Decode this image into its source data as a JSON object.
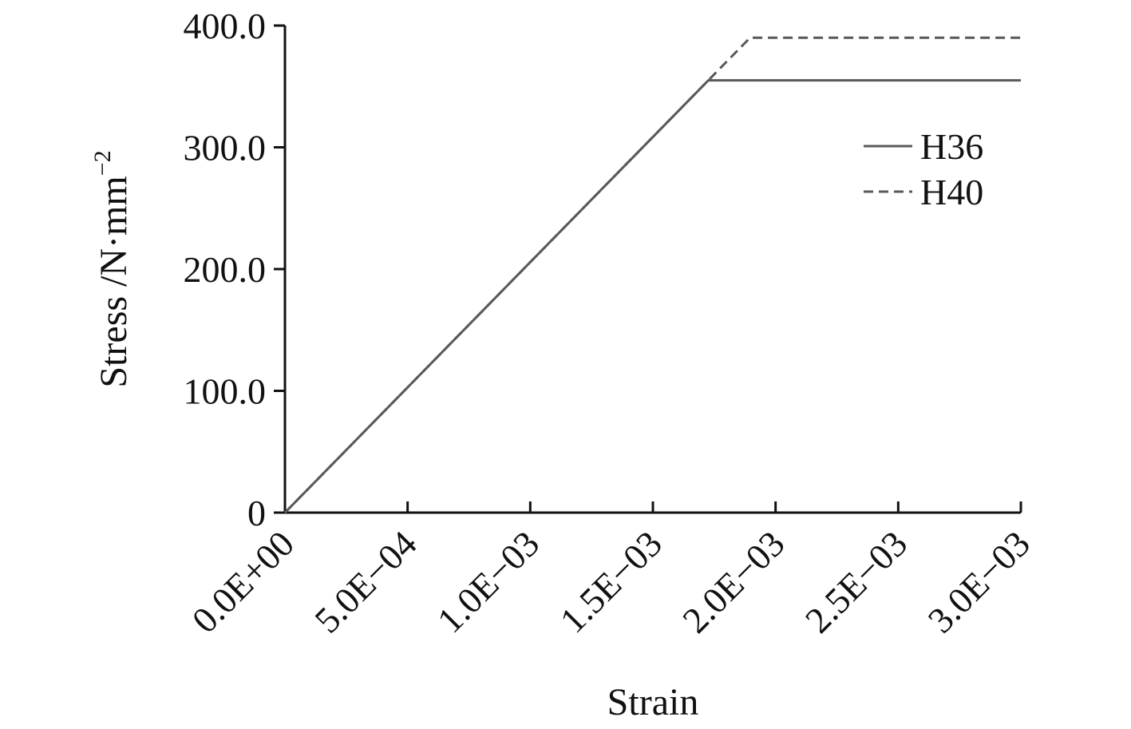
{
  "chart_data": {
    "type": "line",
    "title": "",
    "xlabel": "Strain",
    "ylabel": {
      "main": "Stress /N·mm",
      "sup": "−2"
    },
    "xlim": [
      0,
      0.003
    ],
    "ylim": [
      0,
      400
    ],
    "x_ticks": [
      0,
      0.0005,
      0.001,
      0.0015,
      0.002,
      0.0025,
      0.003
    ],
    "x_tick_labels": [
      "0.0E+00",
      "5.0E−04",
      "1.0E−03",
      "1.5E−03",
      "2.0E−03",
      "2.5E−03",
      "3.0E−03"
    ],
    "y_ticks": [
      0,
      100,
      200,
      300,
      400
    ],
    "y_tick_labels": [
      "0",
      "100.0",
      "200.0",
      "300.0",
      "400.0"
    ],
    "grid": false,
    "legend_position": "right",
    "series": [
      {
        "name": "H36",
        "style": "solid",
        "color": "#595959",
        "points": [
          [
            0,
            0
          ],
          [
            0.001726,
            355
          ],
          [
            0.003,
            355
          ]
        ]
      },
      {
        "name": "H40",
        "style": "dashed",
        "color": "#595959",
        "points": [
          [
            0,
            0
          ],
          [
            0.001896,
            390
          ],
          [
            0.003,
            390
          ]
        ]
      }
    ]
  }
}
